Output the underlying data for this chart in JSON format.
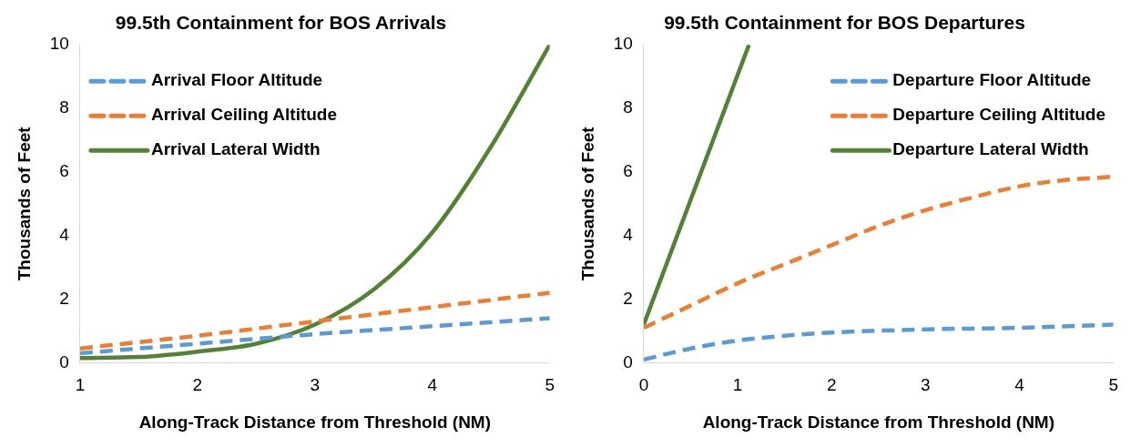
{
  "chart_data": [
    {
      "type": "line",
      "title": "99.5th Containment for BOS Arrivals",
      "xlabel": "Along-Track Distance from Threshold (NM)",
      "ylabel": "Thousands of Feet",
      "xlim": [
        1,
        5
      ],
      "xticks": [
        1,
        2,
        3,
        4,
        5
      ],
      "ylim": [
        0,
        10
      ],
      "yticks": [
        0,
        2,
        4,
        6,
        8,
        10
      ],
      "grid": false,
      "legend": "top left",
      "marker": "none",
      "series": [
        {
          "name": "Arrival Floor Altitude",
          "color": "#5b9bd5",
          "line_style": "dashed",
          "x": [
            1,
            2,
            3,
            4,
            5
          ],
          "values": [
            0.3,
            0.6,
            0.9,
            1.15,
            1.4
          ]
        },
        {
          "name": "Arrival Ceiling Altitude",
          "color": "#ed7d31",
          "line_style": "dashed",
          "x": [
            1,
            2,
            3,
            4,
            5
          ],
          "values": [
            0.45,
            0.85,
            1.3,
            1.75,
            2.2
          ]
        },
        {
          "name": "Arrival Lateral Width",
          "color": "#548235",
          "line_style": "solid",
          "x": [
            1,
            1.5,
            2,
            2.5,
            3,
            3.5,
            4,
            4.5,
            5
          ],
          "values": [
            0.15,
            0.18,
            0.35,
            0.6,
            1.2,
            2.3,
            4.1,
            6.8,
            10
          ]
        }
      ]
    },
    {
      "type": "line",
      "title": "99.5th Containment for BOS Departures",
      "xlabel": "Along-Track Distance from Threshold (NM)",
      "ylabel": "Thousands of Feet",
      "xlim": [
        0,
        5
      ],
      "xticks": [
        0,
        1,
        2,
        3,
        4,
        5
      ],
      "ylim": [
        0,
        10
      ],
      "yticks": [
        0,
        2,
        4,
        6,
        8,
        10
      ],
      "grid": false,
      "legend": "top right",
      "marker": "none",
      "series": [
        {
          "name": "Departure Floor Altitude",
          "color": "#5b9bd5",
          "line_style": "dashed",
          "x": [
            0,
            0.5,
            1,
            1.5,
            2,
            3,
            4,
            5
          ],
          "values": [
            0.1,
            0.45,
            0.7,
            0.85,
            0.95,
            1.05,
            1.1,
            1.2
          ]
        },
        {
          "name": "Departure Ceiling Altitude",
          "color": "#ed7d31",
          "line_style": "dashed",
          "x": [
            0,
            0.5,
            1,
            1.5,
            2,
            2.5,
            3,
            3.5,
            4,
            4.5,
            5
          ],
          "values": [
            1.1,
            1.8,
            2.5,
            3.1,
            3.7,
            4.3,
            4.8,
            5.2,
            5.55,
            5.75,
            5.85
          ]
        },
        {
          "name": "Departure Lateral Width",
          "color": "#548235",
          "line_style": "solid",
          "x": [
            0,
            1.12
          ],
          "values": [
            1.2,
            10
          ]
        }
      ]
    }
  ]
}
